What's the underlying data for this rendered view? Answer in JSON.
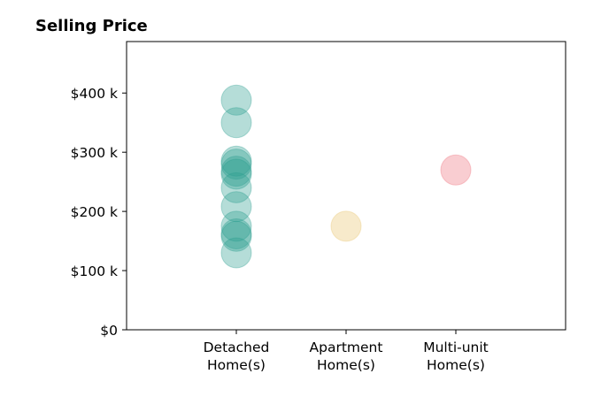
{
  "chart_data": {
    "type": "scatter",
    "title": "Selling Price",
    "xlabel": "",
    "ylabel": "",
    "categories": [
      [
        "Detached",
        "Home(s)"
      ],
      [
        "Apartment",
        "Home(s)"
      ],
      [
        "Multi-unit",
        "Home(s)"
      ]
    ],
    "xlim": [
      0,
      4
    ],
    "ylim": [
      0,
      487000
    ],
    "yticks": [
      0,
      100000,
      200000,
      300000,
      400000
    ],
    "ytick_labels": [
      "$0",
      "$100 k",
      "$200 k",
      "$300 k",
      "$400 k"
    ],
    "grid": false,
    "legend": "none",
    "series": [
      {
        "category_index": 0,
        "color": "#2a9d8f",
        "values": [
          388000,
          350000,
          285000,
          280000,
          268000,
          263000,
          240000,
          208000,
          175000,
          162000,
          158000,
          130000
        ]
      },
      {
        "category_index": 1,
        "color": "#e9c46a",
        "values": [
          175000
        ]
      },
      {
        "category_index": 2,
        "color": "#ef6f7c",
        "values": [
          270000
        ]
      }
    ],
    "marker_alpha": 0.35
  }
}
